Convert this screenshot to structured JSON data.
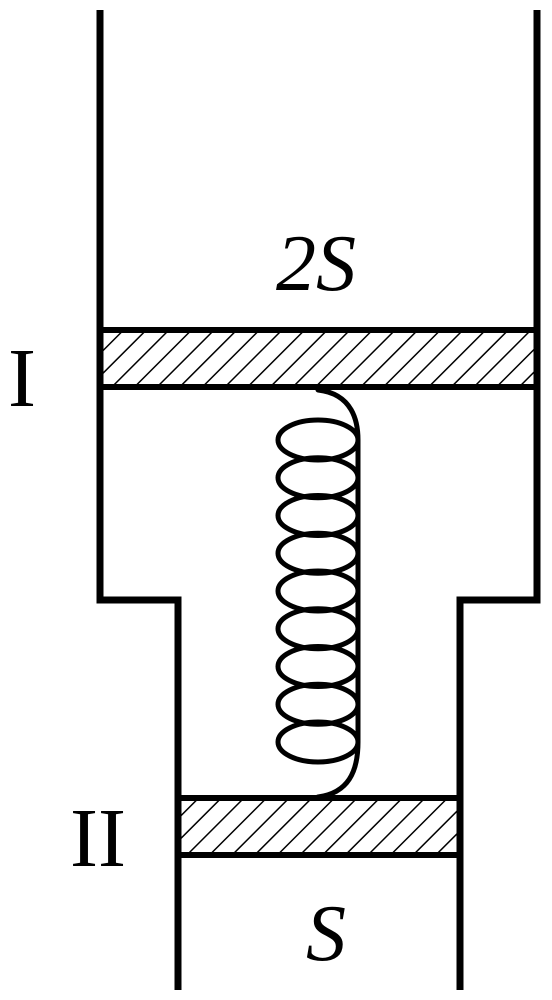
{
  "diagram": {
    "upper_area_label": "2S",
    "lower_area_label": "S",
    "upper_piston_label": "I",
    "lower_piston_label": "II"
  },
  "colors": {
    "stroke": "#000000",
    "background": "#ffffff"
  }
}
